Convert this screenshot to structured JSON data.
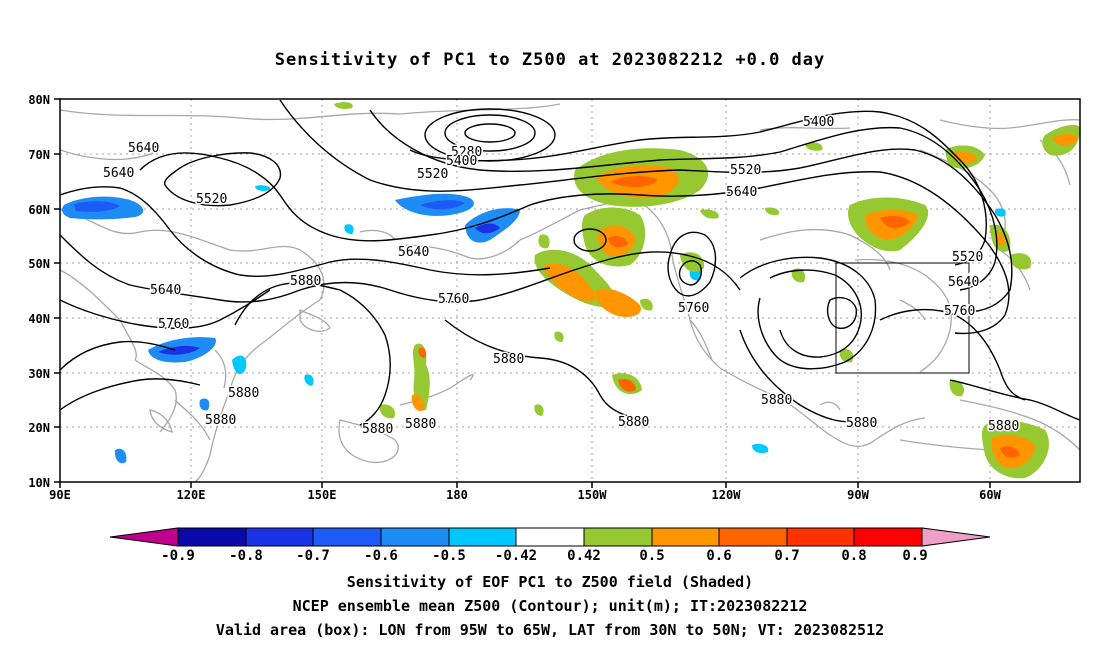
{
  "title": "Sensitivity of PC1 to Z500 at 2023082212 +0.0 day",
  "lat_labels": [
    "80N",
    "70N",
    "60N",
    "50N",
    "40N",
    "30N",
    "20N",
    "10N"
  ],
  "lon_labels": [
    "90E",
    "120E",
    "150E",
    "180",
    "150W",
    "120W",
    "90W",
    "60W"
  ],
  "contour_labels": [
    "5280",
    "5400",
    "5400",
    "5520",
    "5520",
    "5520",
    "5520",
    "5640",
    "5640",
    "5640",
    "5640",
    "5640",
    "5640",
    "5760",
    "5760",
    "5760",
    "5760",
    "5880",
    "5880",
    "5880",
    "5880",
    "5880",
    "5880",
    "5880",
    "5880",
    "5880",
    "5880"
  ],
  "colorbar": {
    "labels": [
      "-0.9",
      "-0.8",
      "-0.7",
      "-0.6",
      "-0.5",
      "-0.42",
      "0.42",
      "0.5",
      "0.6",
      "0.7",
      "0.8",
      "0.9"
    ],
    "colors": [
      "#c0008c",
      "#0a0aa8",
      "#1a32e6",
      "#1e5af5",
      "#1e8cf5",
      "#00c8ff",
      "#ffffff",
      "#96c832",
      "#ff9600",
      "#ff6400",
      "#ff3200",
      "#ff0000",
      "#f0a0c8"
    ]
  },
  "valid_box": {
    "lon_from": "95W",
    "lon_to": "65W",
    "lat_from": "30N",
    "lat_to": "50N"
  },
  "footer": {
    "line1": "Sensitivity of EOF PC1 to Z500 field (Shaded)",
    "line2": "NCEP ensemble mean Z500 (Contour); unit(m); IT:2023082212",
    "line3": "Valid area (box): LON from 95W to 65W, LAT from 30N to 50N; VT: 2023082512"
  }
}
